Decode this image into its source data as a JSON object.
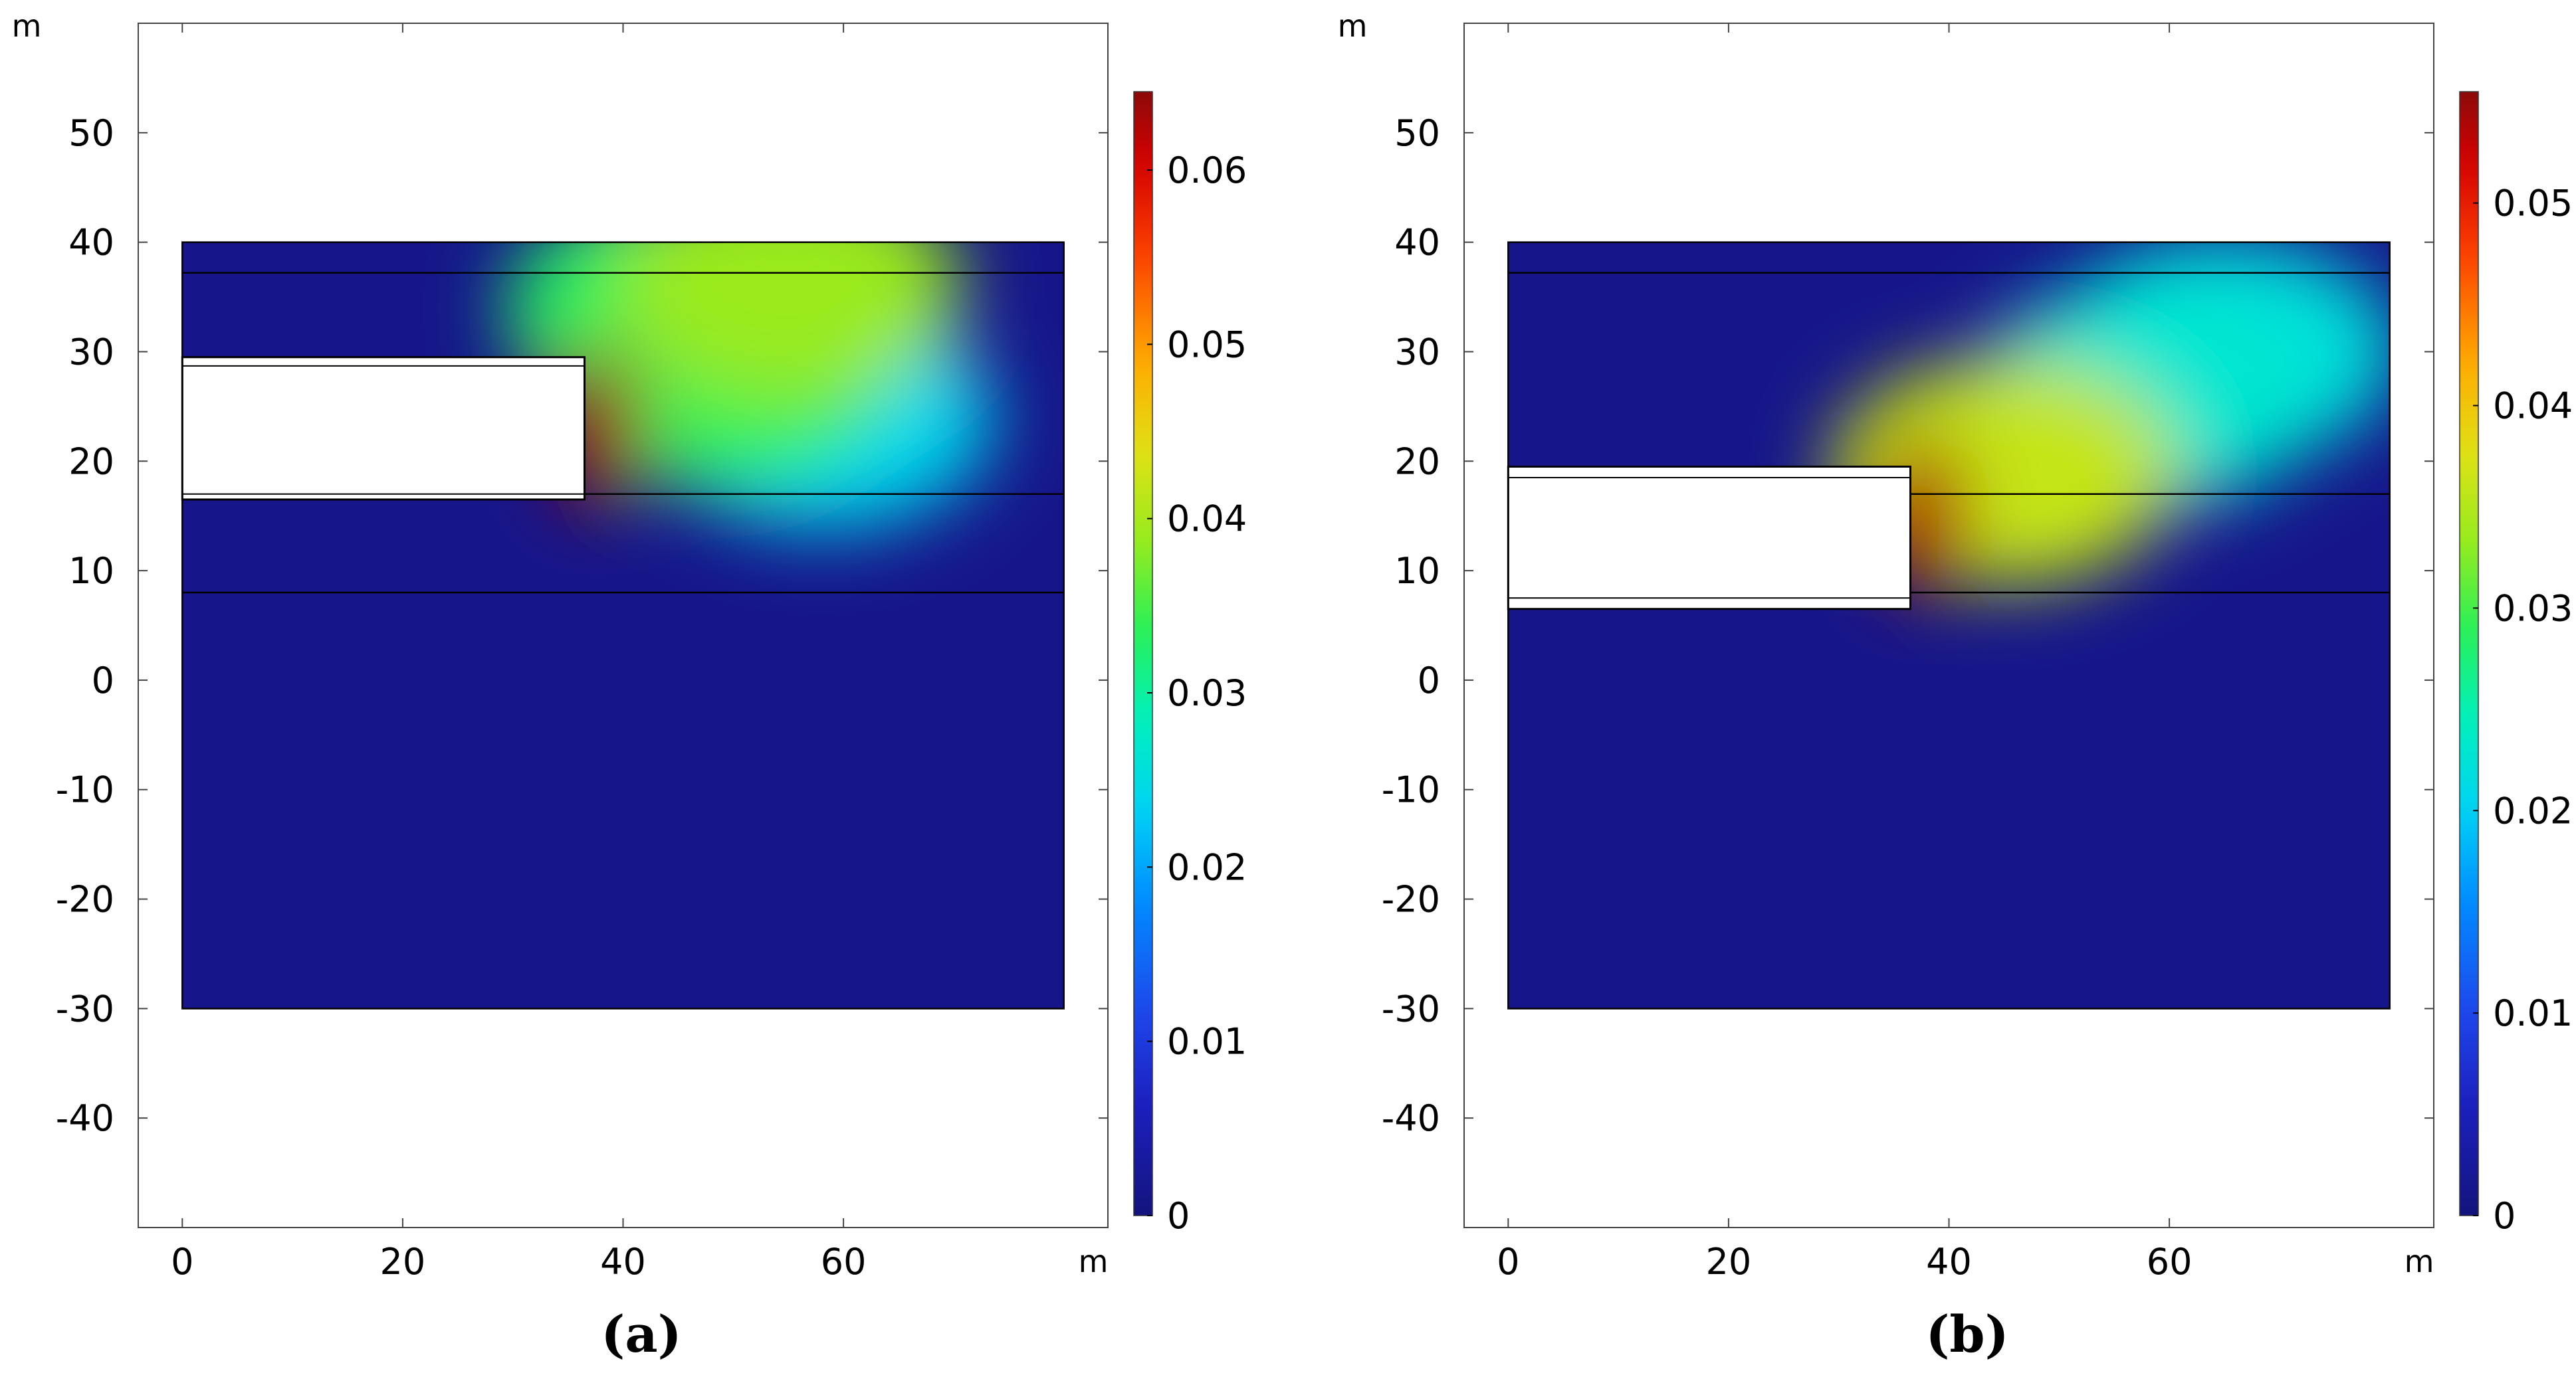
{
  "chart_data": [
    {
      "type": "heatmap",
      "panel_label": "(a)",
      "x_unit": "m",
      "y_unit": "m",
      "xlim": [
        -4,
        84
      ],
      "ylim": [
        -50,
        60
      ],
      "x_ticks": [
        0,
        20,
        40,
        60
      ],
      "y_ticks": [
        50,
        40,
        30,
        20,
        10,
        0,
        -10,
        -20,
        -30,
        -40
      ],
      "x_tick_labels": [
        "0",
        "20",
        "40",
        "60"
      ],
      "y_tick_labels": [
        "50",
        "40",
        "30",
        "20",
        "10",
        "0",
        "-10",
        "-20",
        "-30",
        "-40"
      ],
      "domain": {
        "x": [
          0,
          80
        ],
        "y": [
          -30,
          40
        ]
      },
      "layer_boundaries_y": [
        37.2,
        17.0,
        8.0
      ],
      "excavation": {
        "x": [
          0,
          36.5
        ],
        "y": [
          16.5,
          29.5
        ],
        "liner_y": [
          17.0,
          28.7
        ]
      },
      "colorbar": {
        "min": 0,
        "max": 0.0645,
        "ticks": [
          0,
          0.01,
          0.02,
          0.03,
          0.04,
          0.05,
          0.06
        ],
        "tick_labels": [
          "0",
          "0.01",
          "0.02",
          "0.03",
          "0.04",
          "0.05",
          "0.06"
        ],
        "colormap": "rainbow"
      },
      "field_peaks": [
        {
          "x": 37.5,
          "y": 23,
          "value": 0.064
        },
        {
          "x": 55,
          "y": 36,
          "value": 0.039
        },
        {
          "x": 45,
          "y": 34,
          "value": 0.033
        },
        {
          "x": 48,
          "y": 28,
          "value": 0.034
        },
        {
          "x": 58,
          "y": 24,
          "value": 0.024
        }
      ]
    },
    {
      "type": "heatmap",
      "panel_label": "(b)",
      "x_unit": "m",
      "y_unit": "m",
      "xlim": [
        -4,
        84
      ],
      "ylim": [
        -50,
        60
      ],
      "x_ticks": [
        0,
        20,
        40,
        60
      ],
      "y_ticks": [
        50,
        40,
        30,
        20,
        10,
        0,
        -10,
        -20,
        -30,
        -40
      ],
      "x_tick_labels": [
        "0",
        "20",
        "40",
        "60"
      ],
      "y_tick_labels": [
        "50",
        "40",
        "30",
        "20",
        "10",
        "0",
        "-10",
        "-20",
        "-30",
        "-40"
      ],
      "domain": {
        "x": [
          0,
          80
        ],
        "y": [
          -30,
          40
        ]
      },
      "layer_boundaries_y": [
        37.2,
        17.0,
        8.0
      ],
      "excavation": {
        "x": [
          0,
          36.5
        ],
        "y": [
          6.5,
          19.5
        ],
        "liner_y": [
          7.5,
          18.5
        ]
      },
      "colorbar": {
        "min": 0,
        "max": 0.0555,
        "ticks": [
          0,
          0.01,
          0.02,
          0.03,
          0.04,
          0.05
        ],
        "tick_labels": [
          "0",
          "0.01",
          "0.02",
          "0.03",
          "0.04",
          "0.05"
        ],
        "colormap": "rainbow"
      },
      "field_peaks": [
        {
          "x": 37.5,
          "y": 15,
          "value": 0.054
        },
        {
          "x": 45,
          "y": 19,
          "value": 0.036
        },
        {
          "x": 58,
          "y": 26,
          "value": 0.023
        },
        {
          "x": 65,
          "y": 30,
          "value": 0.022
        }
      ]
    }
  ]
}
